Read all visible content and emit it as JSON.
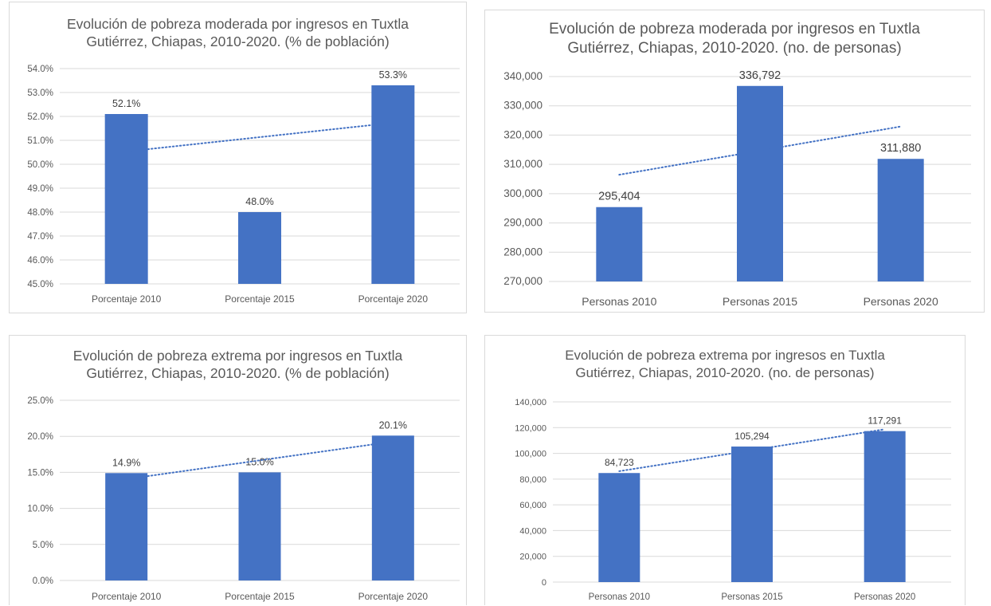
{
  "chart_data": [
    {
      "type": "bar",
      "title": "Evolución de pobreza moderada por ingresos en Tuxtla Gutiérrez, Chiapas, 2010-2020. (% de población)",
      "categories": [
        "Porcentaje 2010",
        "Porcentaje 2015",
        "Porcentaje 2020"
      ],
      "values": [
        52.1,
        48.0,
        53.3
      ],
      "data_labels": [
        "52.1%",
        "48.0%",
        "53.3%"
      ],
      "ylim": [
        45,
        54
      ],
      "yticks": [
        "45.0%",
        "46.0%",
        "47.0%",
        "48.0%",
        "49.0%",
        "50.0%",
        "51.0%",
        "52.0%",
        "53.0%",
        "54.0%"
      ],
      "trendline": "linear",
      "grid": true,
      "color": "#4472C4"
    },
    {
      "type": "bar",
      "title": "Evolución de pobreza moderada por ingresos en Tuxtla Gutiérrez, Chiapas, 2010-2020. (no. de personas)",
      "categories": [
        "Personas 2010",
        "Personas 2015",
        "Personas 2020"
      ],
      "values": [
        295404,
        336792,
        311880
      ],
      "data_labels": [
        "295,404",
        "336,792",
        "311,880"
      ],
      "ylim": [
        270000,
        340000
      ],
      "yticks": [
        "270,000",
        "280,000",
        "290,000",
        "300,000",
        "310,000",
        "320,000",
        "330,000",
        "340,000"
      ],
      "trendline": "linear",
      "grid": true,
      "color": "#4472C4"
    },
    {
      "type": "bar",
      "title": "Evolución de pobreza extrema por ingresos en Tuxtla Gutiérrez, Chiapas, 2010-2020. (% de población)",
      "categories": [
        "Porcentaje 2010",
        "Porcentaje 2015",
        "Porcentaje 2020"
      ],
      "values": [
        14.9,
        15.0,
        20.1
      ],
      "data_labels": [
        "14.9%",
        "15.0%",
        "20.1%"
      ],
      "ylim": [
        0,
        25
      ],
      "yticks": [
        "0.0%",
        "5.0%",
        "10.0%",
        "15.0%",
        "20.0%",
        "25.0%"
      ],
      "trendline": "linear",
      "grid": true,
      "color": "#4472C4"
    },
    {
      "type": "bar",
      "title": "Evolución de pobreza extrema por ingresos en Tuxtla Gutiérrez, Chiapas, 2010-2020. (no. de personas)",
      "categories": [
        "Personas 2010",
        "Personas 2015",
        "Personas 2020"
      ],
      "values": [
        84723,
        105294,
        117291
      ],
      "data_labels": [
        "84,723",
        "105,294",
        "117,291"
      ],
      "ylim": [
        0,
        140000
      ],
      "yticks": [
        "0",
        "20,000",
        "40,000",
        "60,000",
        "80,000",
        "100,000",
        "120,000",
        "140,000"
      ],
      "trendline": "linear",
      "grid": true,
      "color": "#4472C4"
    }
  ]
}
